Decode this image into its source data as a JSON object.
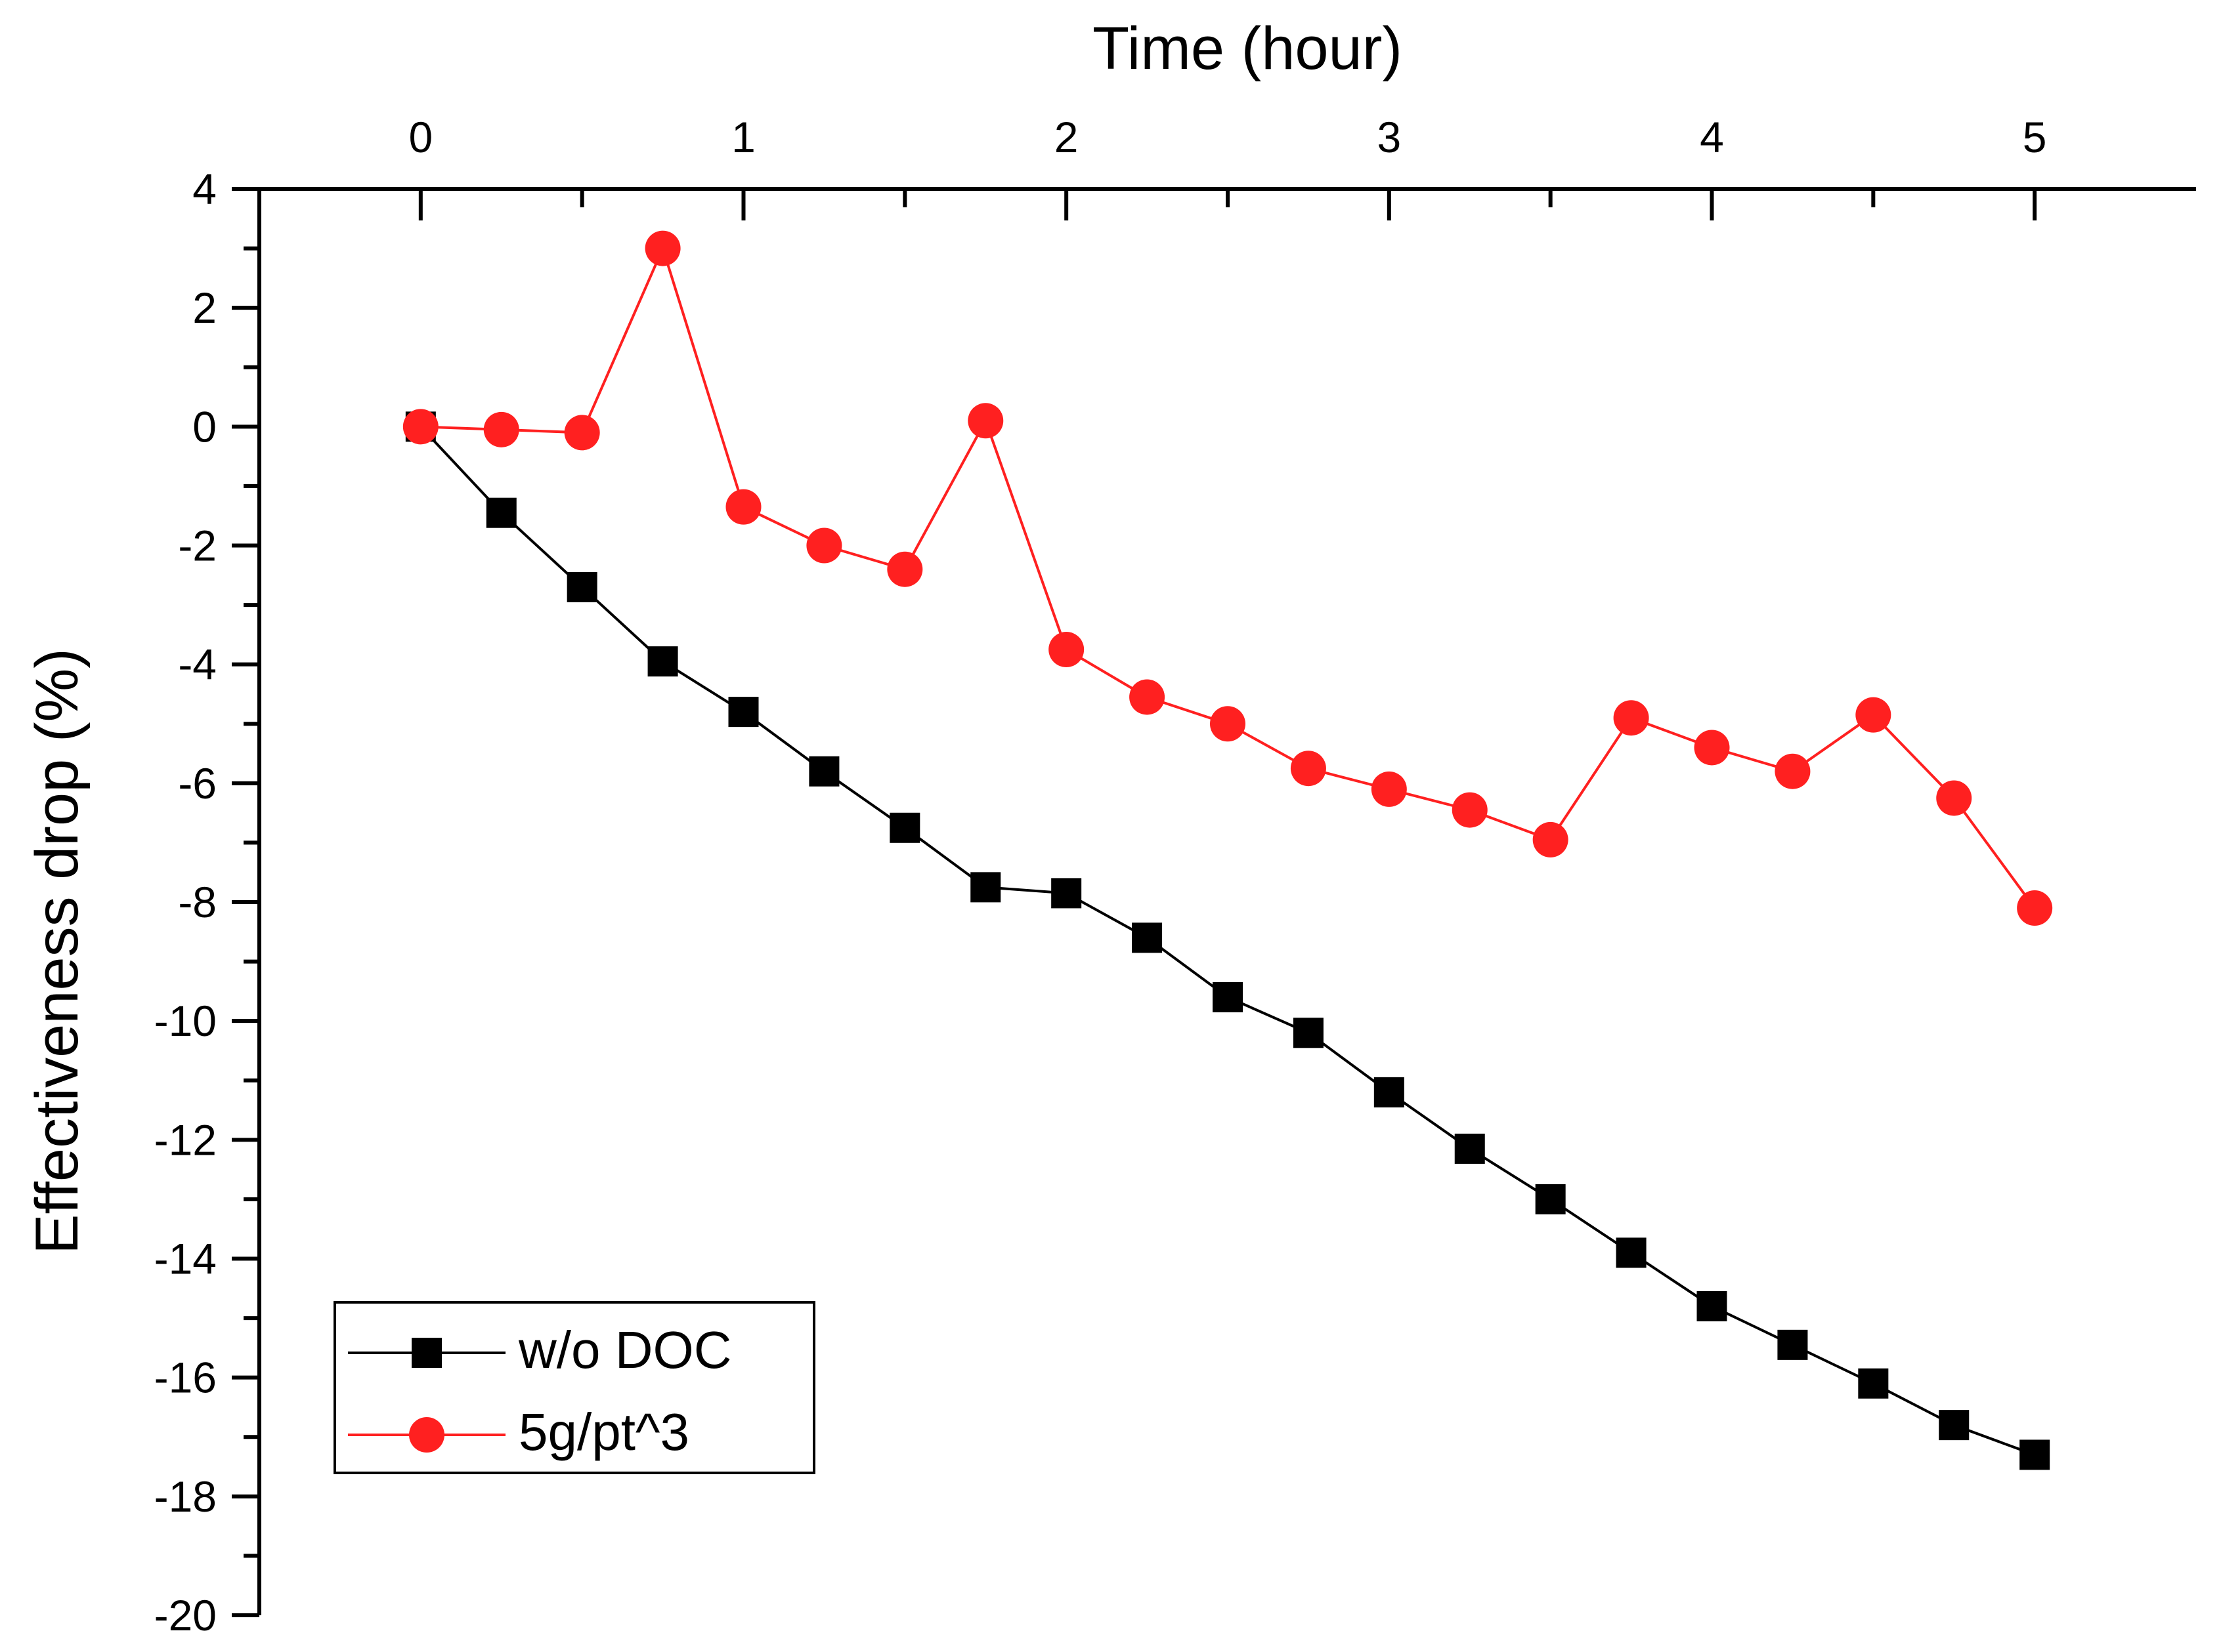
{
  "chart_data": {
    "type": "line",
    "title": "",
    "xlabel": "Time (hour)",
    "ylabel": "Effectiveness drop (%)",
    "xlim": [
      -0.5,
      5.5
    ],
    "ylim": [
      -20,
      4
    ],
    "x_ticks": [
      0,
      1,
      2,
      3,
      4,
      5
    ],
    "x_tick_labels": [
      "0",
      "1",
      "2",
      "3",
      "4",
      "5"
    ],
    "y_ticks": [
      4,
      2,
      0,
      -2,
      -4,
      -6,
      -8,
      -10,
      -12,
      -14,
      -16,
      -18,
      -20
    ],
    "y_tick_labels": [
      "4",
      "2",
      "0",
      "-2",
      "-4",
      "-6",
      "-8",
      "-10",
      "-12",
      "-14",
      "-16",
      "-18",
      "-20"
    ],
    "x": [
      0,
      0.25,
      0.5,
      0.75,
      1,
      1.25,
      1.5,
      1.75,
      2,
      2.25,
      2.5,
      2.75,
      3,
      3.25,
      3.5,
      3.75,
      4,
      4.25,
      4.5,
      4.75,
      5
    ],
    "series": [
      {
        "name": "w/o DOC",
        "color": "#000000",
        "marker": "square",
        "values": [
          0,
          -1.45,
          -2.7,
          -3.95,
          -4.8,
          -5.8,
          -6.75,
          -7.75,
          -7.85,
          -8.6,
          -9.6,
          -10.2,
          -11.2,
          -12.15,
          -13.0,
          -13.9,
          -14.8,
          -15.45,
          -16.1,
          -16.8,
          -17.3
        ]
      },
      {
        "name": "5g/pt^3",
        "color": "#ff2020",
        "marker": "circle",
        "values": [
          0,
          -0.05,
          -0.1,
          3.0,
          -1.35,
          -2.0,
          -2.4,
          0.1,
          -3.75,
          -4.55,
          -5.0,
          -5.75,
          -6.1,
          -6.45,
          -6.95,
          -4.9,
          -5.4,
          -5.8,
          -4.85,
          -6.25,
          -8.1
        ]
      }
    ],
    "legend_position": "bottom-left",
    "grid": false
  }
}
